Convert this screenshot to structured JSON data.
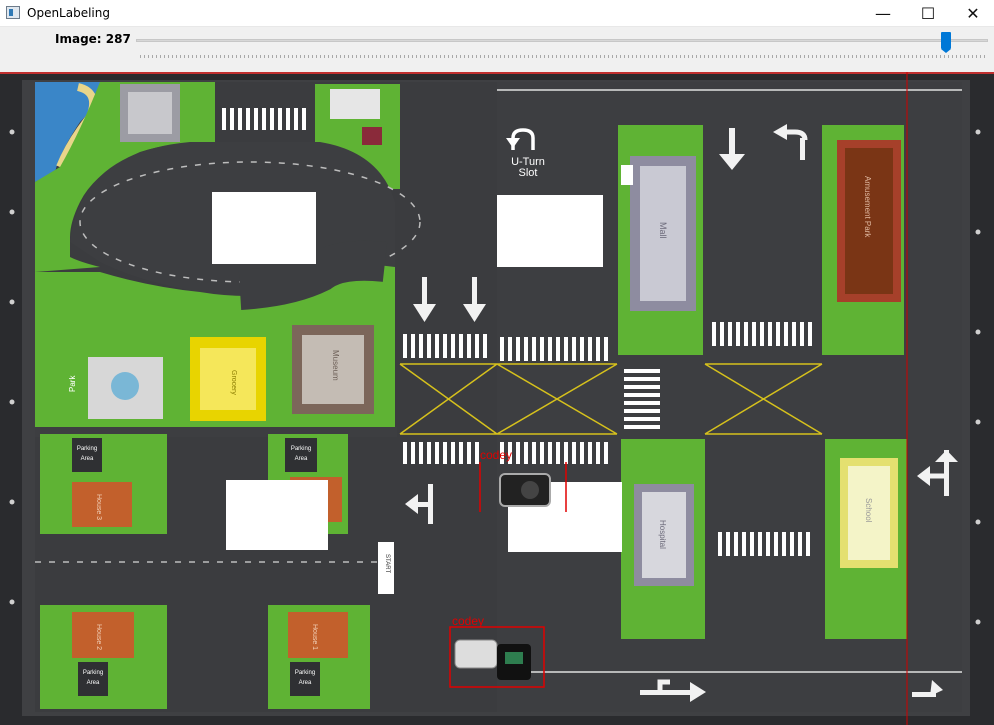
{
  "window": {
    "title": "OpenLabeling"
  },
  "toolbar": {
    "image_label": "Image: 287",
    "image_index": 287
  },
  "window_controls": {
    "minimize": "—",
    "maximize": "☐",
    "close": "✕"
  },
  "map_text": {
    "uturn_1": "U-Turn",
    "uturn_2": "Slot",
    "mall": "Mall",
    "amusement": "Amusement Park",
    "museum": "Museum",
    "grocery": "Grocery",
    "hospital": "Hospital",
    "school": "School",
    "park": "Park",
    "parking_1": "Parking",
    "parking_2": "Area",
    "house1": "House 1",
    "house2": "House 2",
    "house3": "House 3",
    "start": "START"
  },
  "annotations": [
    {
      "label": "codey"
    },
    {
      "label": "codey"
    }
  ],
  "colors": {
    "bbox": "#e00000",
    "slider_accent": "#0078d7",
    "grass": "#5fb334",
    "road": "#3d3e41"
  }
}
